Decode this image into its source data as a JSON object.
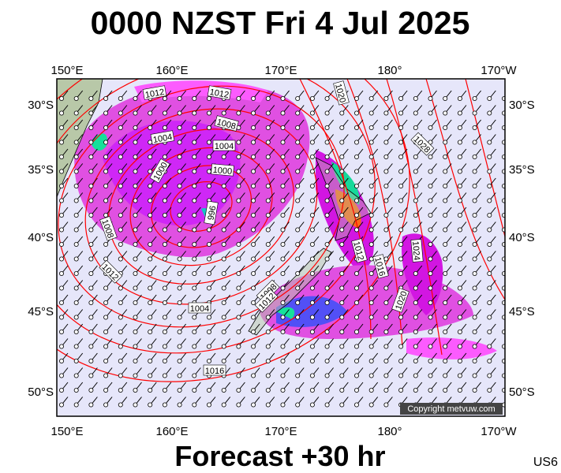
{
  "title": "0000 NZST Fri 4 Jul 2025",
  "longitude_labels": [
    "150°E",
    "160°E",
    "170°E",
    "180°",
    "170°W"
  ],
  "latitude_labels": [
    "30°S",
    "35°S",
    "40°S",
    "45°S",
    "50°S"
  ],
  "isobar_labels": [
    "1012",
    "1012",
    "1020",
    "1008",
    "1004",
    "1004",
    "1000",
    "1000",
    "996",
    "1028",
    "1008",
    "1012",
    "1012",
    "1016",
    "1024",
    "1020",
    "1004",
    "1008",
    "1012",
    "1016"
  ],
  "copyright": "Copyright metvuw.com",
  "footer": "Forecast +30 hr",
  "code": "US6"
}
